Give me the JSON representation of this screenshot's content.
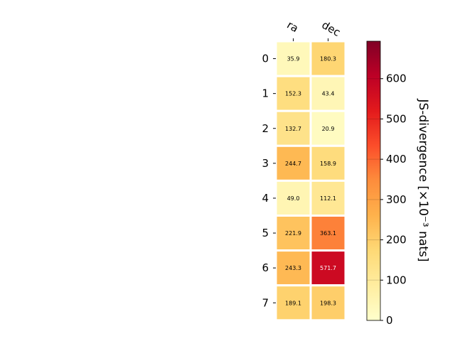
{
  "chart_data": {
    "type": "heatmap",
    "columns": [
      "ra",
      "dec"
    ],
    "rows": [
      "0",
      "1",
      "2",
      "3",
      "4",
      "5",
      "6",
      "7"
    ],
    "values": [
      [
        35.9,
        180.3
      ],
      [
        152.3,
        43.4
      ],
      [
        132.7,
        20.9
      ],
      [
        244.7,
        158.9
      ],
      [
        49.0,
        112.1
      ],
      [
        221.9,
        363.1
      ],
      [
        243.3,
        571.7
      ],
      [
        189.1,
        198.3
      ]
    ],
    "value_labels": [
      [
        "35.9",
        "180.3"
      ],
      [
        "152.3",
        "43.4"
      ],
      [
        "132.7",
        "20.9"
      ],
      [
        "244.7",
        "158.9"
      ],
      [
        "49.0",
        "112.1"
      ],
      [
        "221.9",
        "363.1"
      ],
      [
        "243.3",
        "571.7"
      ],
      [
        "189.1",
        "198.3"
      ]
    ],
    "colorbar": {
      "label": "JS-divergence [×10⁻³ nats]",
      "range": [
        0,
        693
      ],
      "ticks": [
        0,
        100,
        200,
        300,
        400,
        500,
        600
      ],
      "tick_labels": [
        "0",
        "100",
        "200",
        "300",
        "400",
        "500",
        "600"
      ],
      "colormap": "YlOrRd"
    },
    "grid": false
  }
}
